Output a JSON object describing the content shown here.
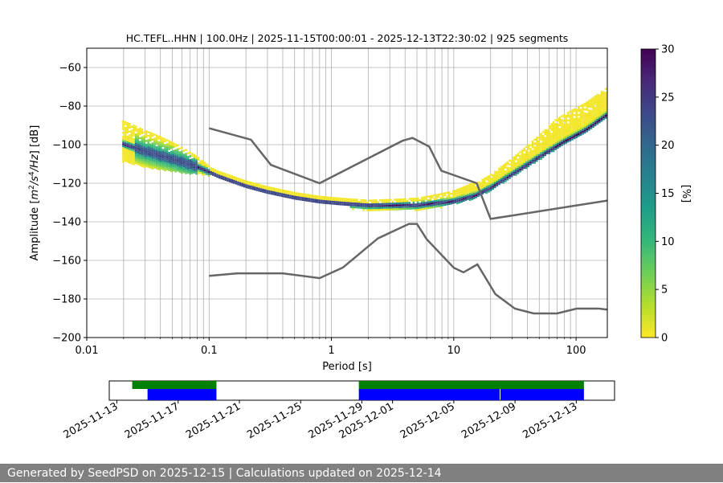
{
  "chart_data": {
    "type": "heatmap",
    "title": "HC.TEFL..HHN | 100.0Hz | 2025-11-15T00:00:01 - 2025-12-13T22:30:02 | 925 segments",
    "xlabel": "Period [s]",
    "ylabel": "Amplitude [m²/s⁴/Hz] [dB]",
    "xscale": "log",
    "xlim": [
      0.01,
      180
    ],
    "ylim": [
      -200,
      -50
    ],
    "xticks": [
      0.01,
      0.1,
      1,
      10,
      100
    ],
    "xticklabels": [
      "0.01",
      "0.1",
      "1",
      "10",
      "100"
    ],
    "yticks": [
      -200,
      -180,
      -160,
      -140,
      -120,
      -100,
      -80,
      -60
    ],
    "yticklabels": [
      "−200",
      "−180",
      "−160",
      "−140",
      "−120",
      "−100",
      "−80",
      "−60"
    ],
    "colorbar": {
      "label": "[%]",
      "min": 0,
      "max": 30,
      "ticks": [
        0,
        5,
        10,
        15,
        20,
        25,
        30
      ],
      "ticklabels": [
        "0",
        "5",
        "10",
        "15",
        "20",
        "25",
        "30"
      ],
      "colormap": [
        "#fde725",
        "#b5de2b",
        "#6ece58",
        "#35b779",
        "#1f9e89",
        "#26828e",
        "#31688e",
        "#3e4989",
        "#482878",
        "#440154"
      ]
    },
    "psd_mode": {
      "period": [
        0.0195,
        0.03,
        0.05,
        0.08,
        0.12,
        0.2,
        0.3,
        0.5,
        0.8,
        1.2,
        2,
        3,
        5,
        7,
        10,
        15,
        20,
        30,
        50,
        80,
        120,
        180
      ],
      "amplitude": [
        -99,
        -103,
        -107,
        -111,
        -116,
        -121,
        -124,
        -127,
        -129,
        -130,
        -131,
        -131,
        -131,
        -130,
        -129,
        -126,
        -122,
        -115,
        -106,
        -98,
        -92,
        -84
      ]
    },
    "nhnm": {
      "period": [
        0.1,
        0.22,
        0.32,
        0.8,
        3.8,
        4.6,
        6.3,
        7.9,
        15.4,
        20,
        180
      ],
      "amplitude": [
        -91.5,
        -97.4,
        -110.5,
        -120,
        -98,
        -96.5,
        -101,
        -113.5,
        -120,
        -138.5,
        -129
      ]
    },
    "nlnm": {
      "period": [
        0.1,
        0.17,
        0.4,
        0.8,
        1.24,
        2.4,
        4.3,
        5,
        6,
        10,
        12,
        15.6,
        21.9,
        31.6,
        45,
        70,
        101,
        154,
        180
      ],
      "amplitude": [
        -168,
        -166.7,
        -166.7,
        -169.2,
        -163.7,
        -148.6,
        -141.1,
        -141.1,
        -149,
        -163.8,
        -166.2,
        -162.1,
        -177.5,
        -185,
        -187.5,
        -187.5,
        -185,
        -185,
        -185.5
      ]
    },
    "timeline": {
      "ticklabels": [
        "2025-11-13",
        "2025-11-17",
        "2025-11-21",
        "2025-11-25",
        "2025-11-29",
        "2025-12-01",
        "2025-12-05",
        "2025-12-09",
        "2025-12-13"
      ],
      "tick_days": [
        0,
        4,
        8,
        12,
        16,
        18,
        22,
        26,
        30
      ],
      "day_range": [
        -0.5,
        32.5
      ],
      "green_segments": [
        [
          1,
          6.5
        ],
        [
          15.8,
          30.5
        ]
      ],
      "blue_segments": [
        [
          2,
          6.5
        ],
        [
          15.8,
          25.0
        ],
        [
          25.05,
          30.5
        ]
      ],
      "colors": {
        "green": "#008000",
        "blue": "#0000ff"
      }
    }
  },
  "footer": {
    "text": "Generated by SeedPSD on 2025-12-15 | Calculations updated on 2025-12-14"
  }
}
